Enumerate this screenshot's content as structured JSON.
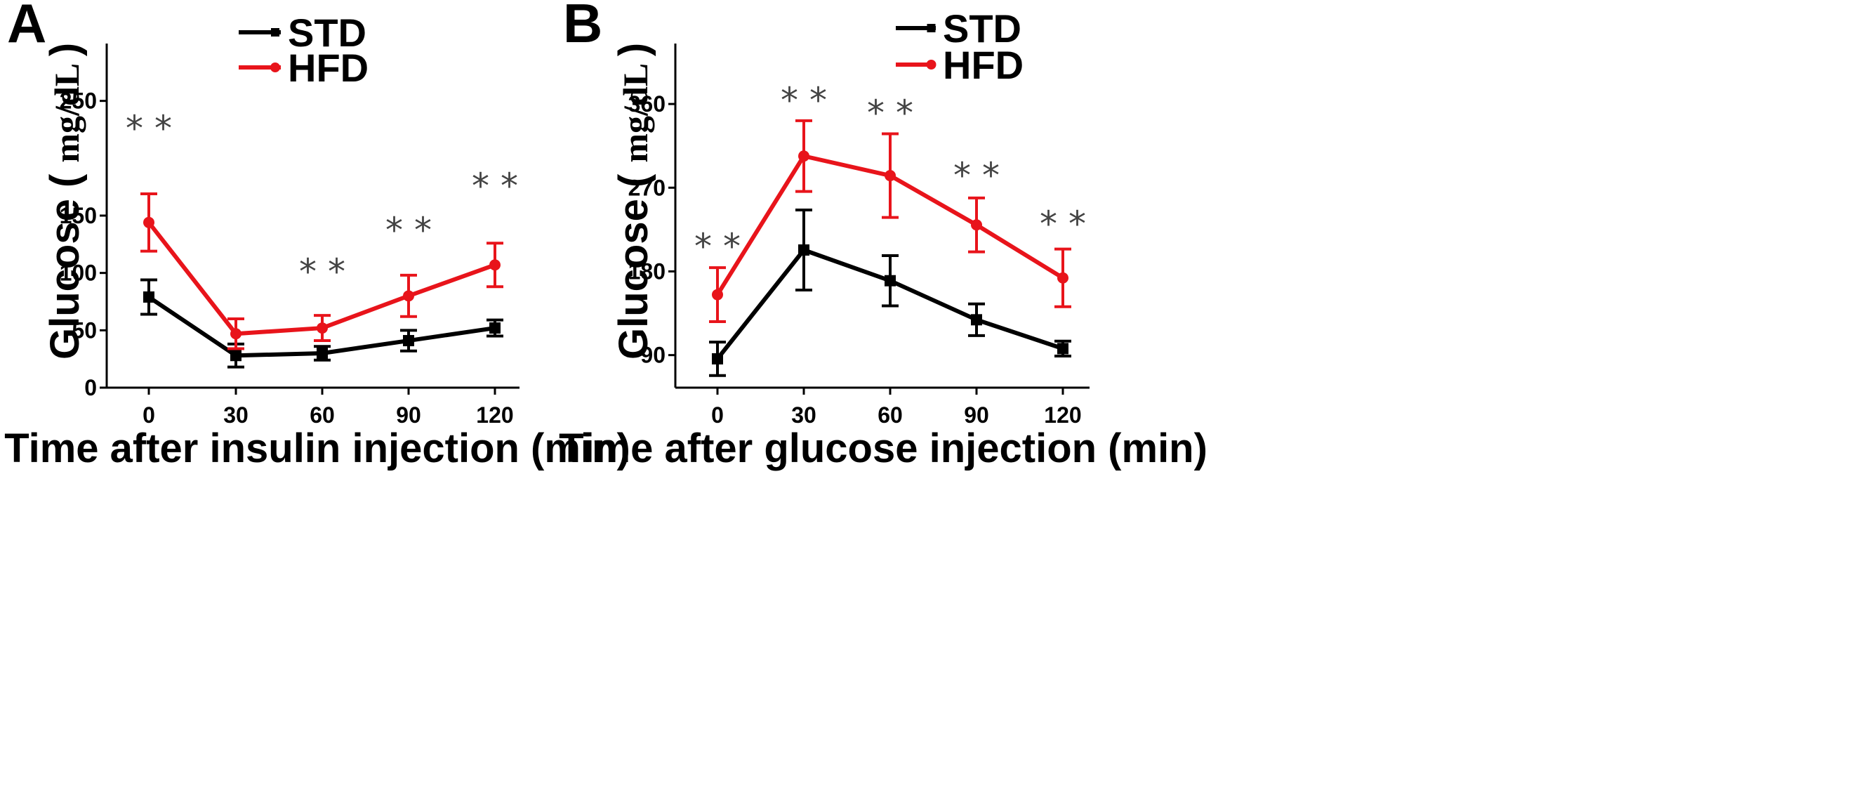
{
  "chart_data": [
    {
      "panel": "A",
      "type": "line",
      "xlabel": "Time after insulin injection (min)",
      "ylabel": "Glucose",
      "ylabel_unit": "mg/dL",
      "x": [
        0,
        30,
        60,
        90,
        120
      ],
      "x_tick_labels": [
        "0",
        "30",
        "60",
        "90",
        "120"
      ],
      "y_tick_values": [
        0,
        50,
        100,
        150,
        250
      ],
      "y_tick_labels": [
        "0",
        "50",
        "100",
        "150",
        "250"
      ],
      "ylim": [
        0,
        300
      ],
      "series": [
        {
          "name": "STD",
          "color": "#000000",
          "marker": "square",
          "values": [
            79,
            28,
            30,
            41,
            52
          ],
          "error": [
            15,
            10,
            6,
            9,
            7
          ]
        },
        {
          "name": "HFD",
          "color": "#e8141b",
          "marker": "circle",
          "values": [
            144,
            47,
            52,
            80,
            107
          ],
          "error": [
            25,
            13,
            11,
            18,
            19
          ]
        }
      ],
      "significance": [
        "* *",
        "",
        "*  *",
        "*  *",
        "*  *"
      ]
    },
    {
      "panel": "B",
      "type": "line",
      "xlabel": "Time after glucose injection (min)",
      "ylabel": "Glucose",
      "ylabel_unit": "mg/dL",
      "x": [
        0,
        30,
        60,
        90,
        120
      ],
      "x_tick_labels": [
        "0",
        "30",
        "60",
        "90",
        "120"
      ],
      "y_tick_values": [
        90,
        180,
        270,
        360
      ],
      "y_tick_labels": [
        "90",
        "180",
        "270",
        "360"
      ],
      "ylim": [
        55,
        425
      ],
      "series": [
        {
          "name": "STD",
          "color": "#000000",
          "marker": "square",
          "values": [
            86,
            203,
            170,
            128,
            97
          ],
          "error": [
            18,
            43,
            27,
            17,
            8
          ]
        },
        {
          "name": "HFD",
          "color": "#e8141b",
          "marker": "circle",
          "values": [
            155,
            304,
            283,
            230,
            173
          ],
          "error": [
            29,
            38,
            45,
            29,
            31
          ]
        }
      ],
      "significance": [
        "* *",
        "* *",
        "* *",
        "* *",
        "* *"
      ]
    }
  ]
}
